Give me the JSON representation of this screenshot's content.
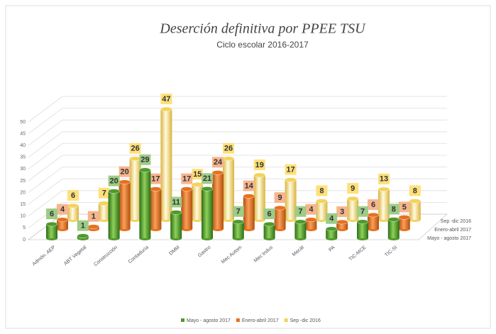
{
  "chart_data": {
    "type": "bar3d",
    "title": "Deserción definitiva por PPEE TSU",
    "subtitle": "Ciclo escolar 2016-2017",
    "categories": [
      "Admón. AEP",
      "ABT Vegetal",
      "Construcción",
      "Contaduría",
      "DMM",
      "Gastro",
      "Mec Autom",
      "Mec Indus",
      "Mecát",
      "PA",
      "TIC-MCE",
      "TIC-SI"
    ],
    "series": [
      {
        "name": "Mayo - agosto 2017",
        "color": "#4f9a2c",
        "values": [
          6,
          1,
          20,
          29,
          11,
          21,
          7,
          6,
          7,
          4,
          7,
          8
        ]
      },
      {
        "name": "Enero-abril 2017",
        "color": "#e8701e",
        "values": [
          4,
          1,
          20,
          17,
          17,
          24,
          14,
          9,
          4,
          3,
          6,
          5
        ]
      },
      {
        "name": "Sep -dic 2016",
        "color": "#f3d35a",
        "values": [
          6,
          7,
          26,
          47,
          15,
          26,
          19,
          17,
          8,
          9,
          13,
          8
        ]
      }
    ],
    "ylim": [
      0,
      50
    ],
    "yticks": [
      0,
      5,
      10,
      15,
      20,
      25,
      30,
      35,
      40,
      45,
      50
    ],
    "grid": true
  }
}
